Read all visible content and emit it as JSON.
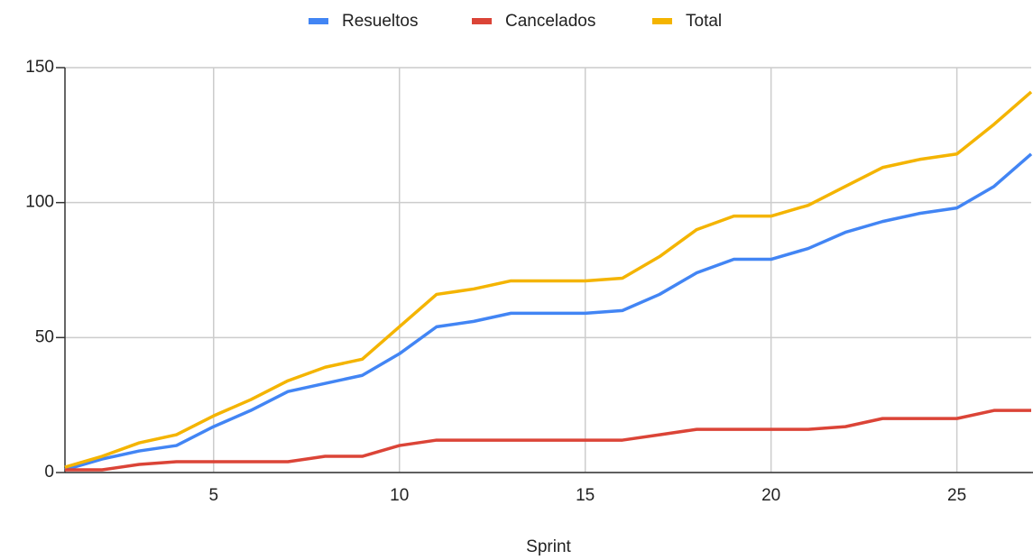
{
  "chart_data": {
    "type": "line",
    "x_label": "Sprint",
    "x": [
      1,
      2,
      3,
      4,
      5,
      6,
      7,
      8,
      9,
      10,
      11,
      12,
      13,
      14,
      15,
      16,
      17,
      18,
      19,
      20,
      21,
      22,
      23,
      24,
      25,
      26,
      27
    ],
    "series": [
      {
        "name": "Resueltos",
        "color": "#4285f4",
        "values": [
          1,
          5,
          8,
          10,
          17,
          23,
          30,
          33,
          36,
          44,
          54,
          56,
          59,
          59,
          59,
          60,
          66,
          74,
          79,
          79,
          83,
          89,
          93,
          96,
          98,
          106,
          118
        ]
      },
      {
        "name": "Cancelados",
        "color": "#db4437",
        "values": [
          1,
          1,
          3,
          4,
          4,
          4,
          4,
          6,
          6,
          10,
          12,
          12,
          12,
          12,
          12,
          12,
          14,
          16,
          16,
          16,
          16,
          17,
          20,
          20,
          20,
          23,
          23
        ]
      },
      {
        "name": "Total",
        "color": "#f4b400",
        "values": [
          2,
          6,
          11,
          14,
          21,
          27,
          34,
          39,
          42,
          54,
          66,
          68,
          71,
          71,
          71,
          72,
          80,
          90,
          95,
          95,
          99,
          106,
          113,
          116,
          118,
          129,
          141
        ]
      }
    ],
    "xlim": [
      1,
      27
    ],
    "xticks": [
      5,
      10,
      15,
      20,
      25
    ],
    "ylim": [
      0,
      150
    ],
    "yticks": [
      0,
      50,
      100,
      150
    ],
    "grid": true,
    "legend": "top"
  }
}
